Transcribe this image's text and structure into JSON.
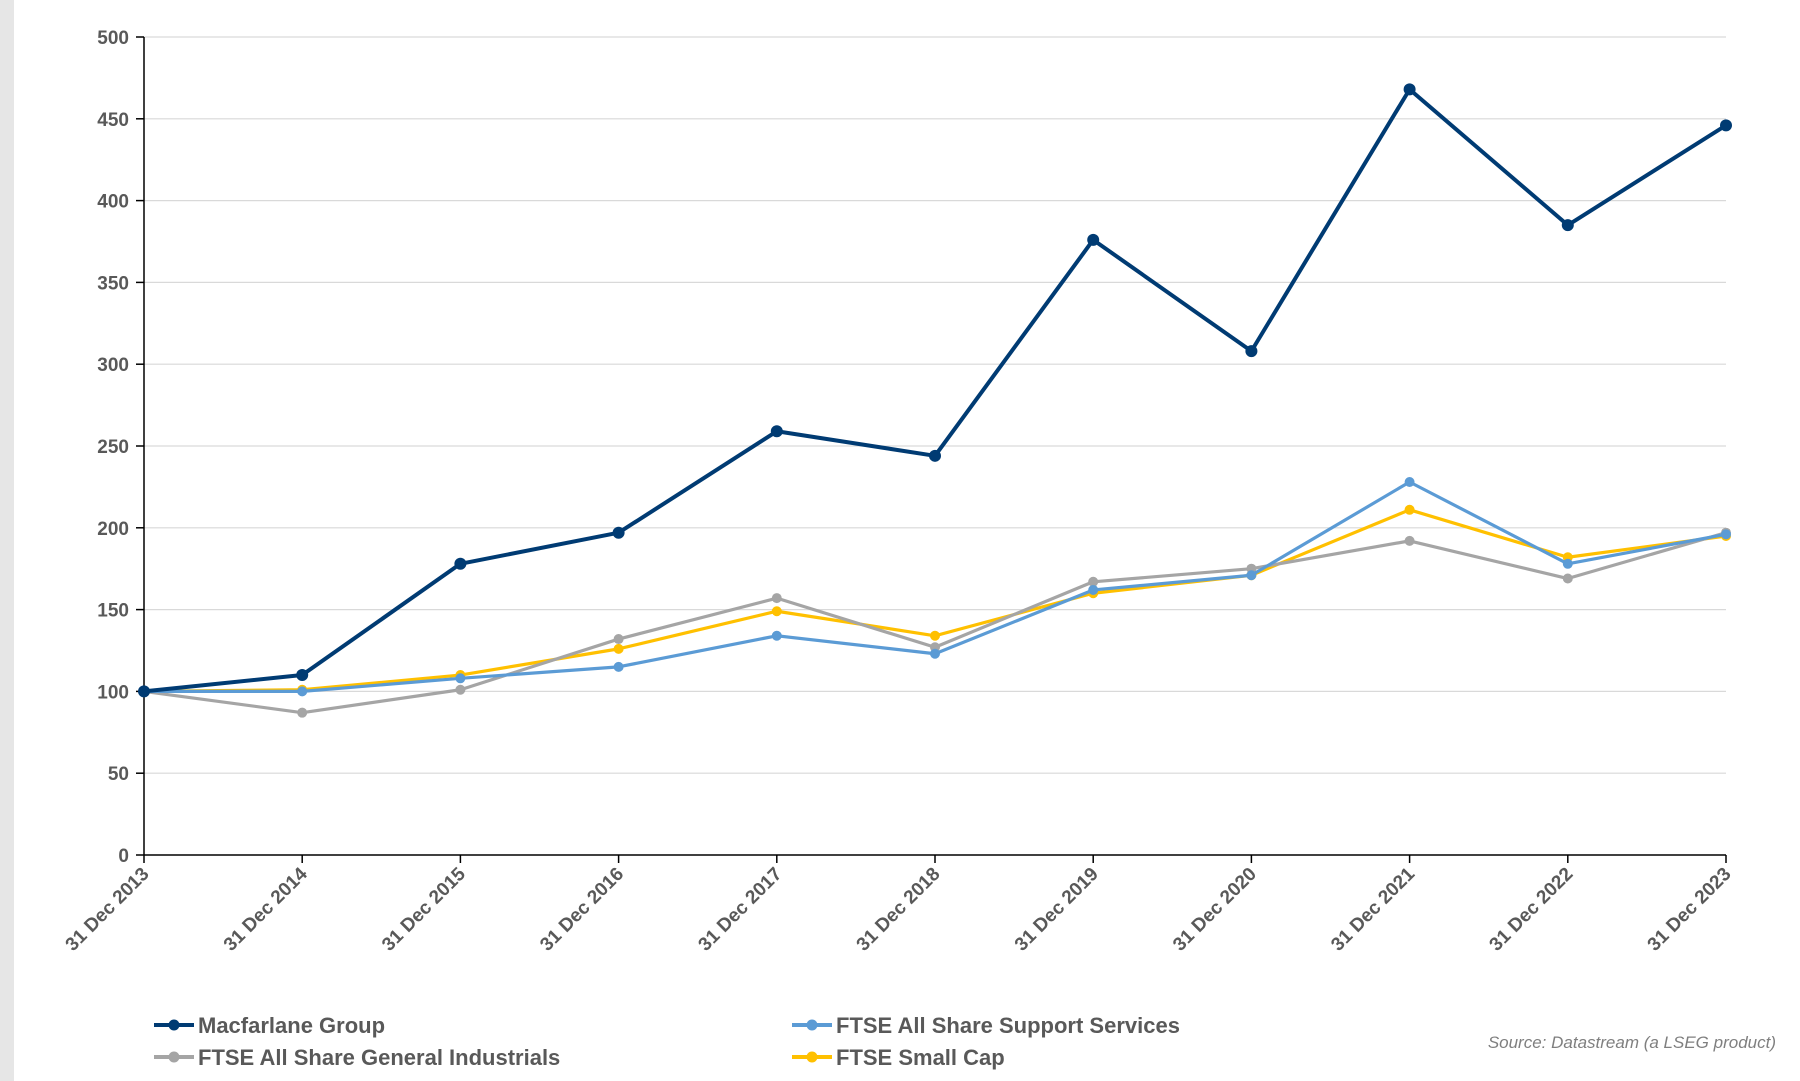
{
  "chart_data": {
    "type": "line",
    "x": [
      "31 Dec 2013",
      "31 Dec 2014",
      "31 Dec 2015",
      "31 Dec 2016",
      "31 Dec 2017",
      "31 Dec 2018",
      "31 Dec 2019",
      "31 Dec 2020",
      "31 Dec 2021",
      "31 Dec 2022",
      "31 Dec 2023"
    ],
    "y_ticks": [
      "0",
      "50",
      "100",
      "150",
      "200",
      "250",
      "300",
      "350",
      "400",
      "450",
      "500"
    ],
    "ylim": [
      0,
      500
    ],
    "grid": true,
    "legend_position": "bottom",
    "series": [
      {
        "name": "Macfarlane Group",
        "color": "#003b73",
        "values": [
          100,
          110,
          178,
          197,
          259,
          244,
          376,
          308,
          468,
          385,
          446
        ]
      },
      {
        "name": "FTSE All Share Support Services",
        "color": "#5b9bd5",
        "values": [
          100,
          100,
          108,
          115,
          134,
          123,
          162,
          171,
          228,
          178,
          196
        ]
      },
      {
        "name": "FTSE All Share General Industrials",
        "color": "#a5a5a5",
        "values": [
          100,
          87,
          101,
          132,
          157,
          127,
          167,
          175,
          192,
          169,
          197
        ]
      },
      {
        "name": "FTSE Small Cap",
        "color": "#ffc000",
        "values": [
          100,
          101,
          110,
          126,
          149,
          134,
          160,
          171,
          211,
          182,
          195
        ]
      }
    ],
    "source": "Source: Datastream (a LSEG product)"
  }
}
